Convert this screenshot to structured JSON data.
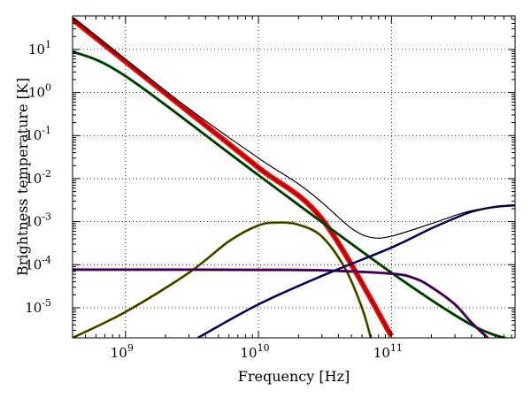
{
  "chart_data": {
    "type": "line",
    "title": "",
    "xlabel": "Frequency [Hz]",
    "ylabel": "Brightness temperature [K]",
    "x_scale": "log",
    "y_scale": "log",
    "xlim": [
      400000000.0,
      850000000000.0
    ],
    "ylim": [
      2e-06,
      60
    ],
    "grid": true,
    "legend": "none",
    "xticks": [
      {
        "value": 1000000000.0,
        "base": "10",
        "exp": "9"
      },
      {
        "value": 10000000000.0,
        "base": "10",
        "exp": "10"
      },
      {
        "value": 100000000000.0,
        "base": "10",
        "exp": "11"
      }
    ],
    "yticks": [
      {
        "value": 10,
        "base": "10",
        "exp": "1"
      },
      {
        "value": 1,
        "base": "10",
        "exp": "0"
      },
      {
        "value": 0.1,
        "base": "10",
        "exp": "-1"
      },
      {
        "value": 0.01,
        "base": "10",
        "exp": "-2"
      },
      {
        "value": 0.001,
        "base": "10",
        "exp": "-3"
      },
      {
        "value": 0.0001,
        "base": "10",
        "exp": "-4"
      },
      {
        "value": 1e-05,
        "base": "10",
        "exp": "-5"
      }
    ],
    "series": [
      {
        "color": "#ff0000",
        "width": 5,
        "x": [
          400000000.0,
          1000000000.0,
          3000000000.0,
          10000000000.0,
          30000000000.0,
          100000000000.0
        ],
        "y": [
          50,
          5.2,
          0.35,
          0.018,
          0.00115,
          2.2e-06
        ]
      },
      {
        "color": "#006400",
        "width": 2,
        "x": [
          400000000.0,
          1000000000.0,
          10000000000.0,
          100000000000.0,
          400000000000.0,
          850000000000.0
        ],
        "y": [
          9,
          2.4,
          0.012,
          6.5e-05,
          4e-06,
          1.7e-06
        ]
      },
      {
        "color": "#808000",
        "width": 2,
        "x": [
          400000000.0,
          1000000000.0,
          3000000000.0,
          6000000000.0,
          10000000000.0,
          14000000000.0,
          20000000000.0,
          30000000000.0,
          45000000000.0,
          60000000000.0,
          70000000000.0
        ],
        "y": [
          2e-06,
          8e-06,
          6.5e-05,
          0.00035,
          0.00082,
          0.00095,
          0.00085,
          0.00045,
          8e-05,
          1e-05,
          2e-06
        ]
      },
      {
        "color": "#6a0080",
        "width": 2,
        "x": [
          400000000.0,
          1000000000.0,
          10000000000.0,
          30000000000.0,
          100000000000.0,
          150000000000.0,
          200000000000.0,
          300000000000.0,
          400000000000.0,
          530000000000.0
        ],
        "y": [
          7.7e-05,
          7.7e-05,
          7.6e-05,
          7.4e-05,
          6.2e-05,
          4.8e-05,
          3e-05,
          1.2e-05,
          4.5e-06,
          2e-06
        ]
      },
      {
        "color": "#000080",
        "width": 1.5,
        "x": [
          3500000000.0,
          10000000000.0,
          30000000000.0,
          100000000000.0,
          200000000000.0,
          300000000000.0,
          400000000000.0,
          600000000000.0,
          850000000000.0
        ],
        "y": [
          2e-06,
          1.2e-05,
          5.5e-05,
          0.00025,
          0.0007,
          0.0012,
          0.0017,
          0.0022,
          0.0024
        ]
      },
      {
        "color": "#000000",
        "width": 1.2,
        "x": [
          400000000.0,
          1000000000.0,
          3000000000.0,
          10000000000.0,
          20000000000.0,
          30000000000.0,
          50000000000.0,
          70000000000.0,
          100000000000.0,
          200000000000.0,
          400000000000.0,
          850000000000.0
        ],
        "y": [
          56,
          5.9,
          0.42,
          0.03,
          0.0075,
          0.0028,
          0.0007,
          0.00043,
          0.00046,
          0.0009,
          0.0018,
          0.0024
        ]
      }
    ]
  }
}
